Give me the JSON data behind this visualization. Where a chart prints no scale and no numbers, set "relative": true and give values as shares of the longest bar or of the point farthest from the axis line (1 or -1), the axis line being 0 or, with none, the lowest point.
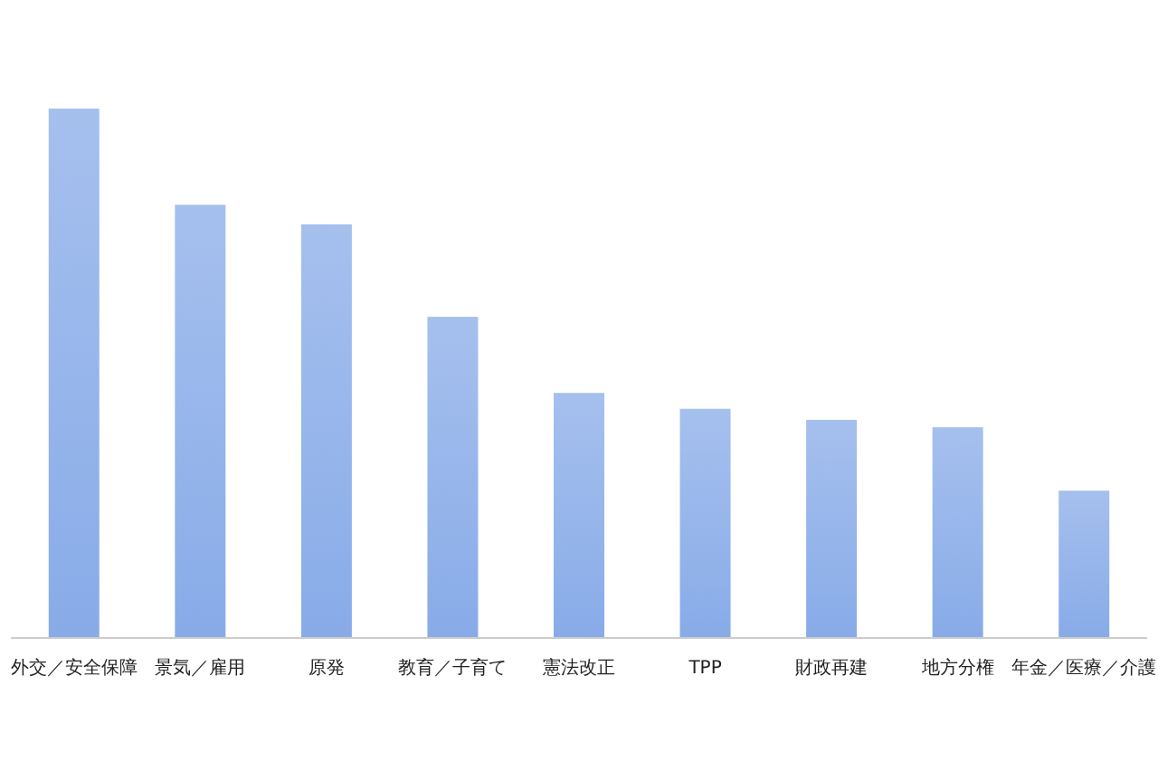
{
  "chart_data": {
    "type": "bar",
    "relative": true,
    "color": "#88abe8",
    "categories": [
      "外交／安全保障",
      "景気／雇用",
      "原発",
      "教育／子育て",
      "憲法改正",
      "TPP",
      "財政再建",
      "地方分権",
      "年金／医療／介護"
    ],
    "values": [
      1,
      0.818,
      0.781,
      0.606,
      0.462,
      0.432,
      0.411,
      0.397,
      0.277
    ]
  }
}
